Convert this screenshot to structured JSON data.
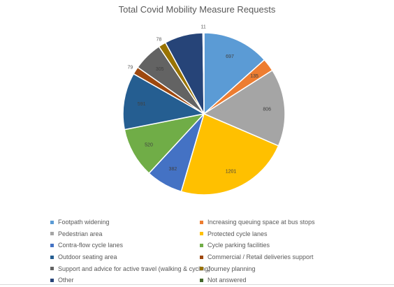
{
  "chart_data": {
    "type": "pie",
    "title": "Total Covid Mobility Measure Requests",
    "categories": [
      "Footpath widening",
      "Increasing queuing space at bus stops",
      "Pedestrian area",
      "Protected cycle lanes",
      "Contra-flow cycle lanes",
      "Cycle parking facilities",
      "Outdoor seating area",
      "Commercial / Retail deliveries support",
      "Support and advice for active travel (walking & cycling)",
      "Journey planning",
      "Other",
      "Not answered"
    ],
    "values": [
      697,
      135,
      806,
      1201,
      382,
      520,
      591,
      79,
      305,
      78,
      400,
      11
    ],
    "data_labels": [
      "697",
      "135",
      "806",
      "1201",
      "382",
      "520",
      "591",
      "79",
      "305",
      "78",
      "",
      "11"
    ],
    "colors": [
      "#5B9BD5",
      "#ED7D31",
      "#A5A5A5",
      "#FFC000",
      "#4472C4",
      "#70AD47",
      "#255E91",
      "#9E480E",
      "#636363",
      "#997300",
      "#264478",
      "#43682B"
    ],
    "legend_position": "bottom"
  }
}
